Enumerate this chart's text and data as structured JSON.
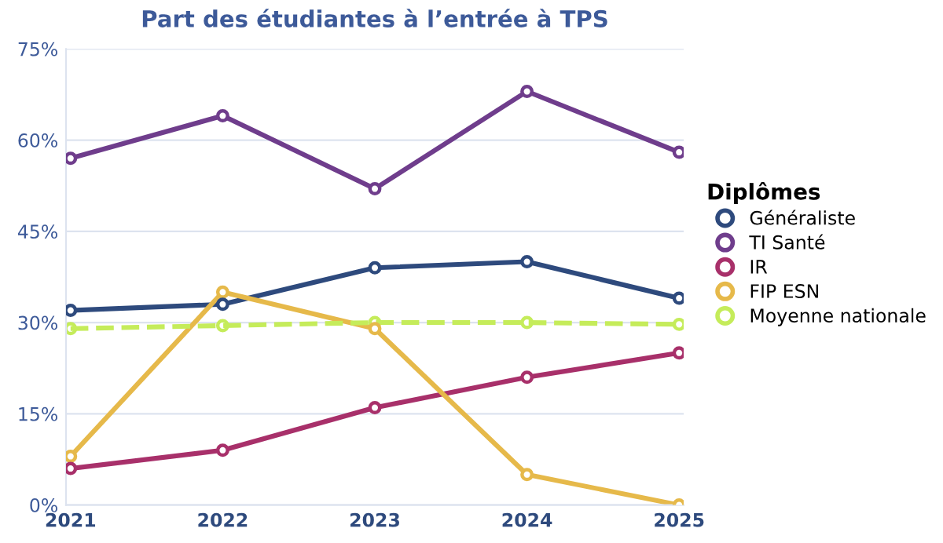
{
  "chart_data": {
    "type": "line",
    "title": "Part des étudiantes à l’entrée à TPS",
    "legend_title": "Diplômes",
    "categories": [
      "2021",
      "2022",
      "2023",
      "2024",
      "2025"
    ],
    "series": [
      {
        "name": "Généraliste",
        "color": "#2e4a7d",
        "values": [
          32,
          33,
          39,
          40,
          34
        ]
      },
      {
        "name": "TI Santé",
        "color": "#6f3d8c",
        "values": [
          57,
          64,
          52,
          68,
          58
        ]
      },
      {
        "name": "IR",
        "color": "#a8306a",
        "values": [
          6,
          9,
          16,
          21,
          25
        ]
      },
      {
        "name": "FIP ESN",
        "color": "#e6b94a",
        "values": [
          8,
          35,
          29,
          5,
          0
        ]
      },
      {
        "name": "Moyenne nationale",
        "color": "#c5ec5a",
        "values": [
          29,
          29.5,
          30,
          30,
          29.7
        ],
        "line_style": "dashed"
      }
    ],
    "ylim": [
      0,
      75
    ],
    "yticks": [
      {
        "value": 0,
        "label": "0%"
      },
      {
        "value": 15,
        "label": "15%"
      },
      {
        "value": 30,
        "label": "30%"
      },
      {
        "value": 45,
        "label": "45%"
      },
      {
        "value": 60,
        "label": "60%"
      },
      {
        "value": 75,
        "label": "75%"
      }
    ],
    "grid": "y",
    "legend": "right",
    "marker": "circle",
    "line_style": "solid"
  }
}
